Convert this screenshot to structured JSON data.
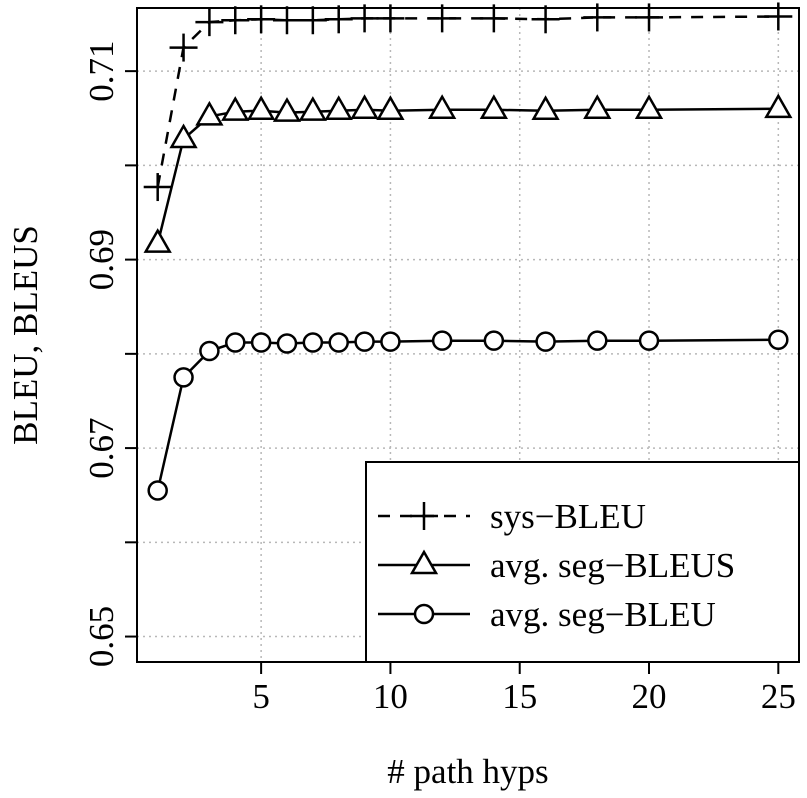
{
  "chart_data": {
    "type": "line",
    "xlabel": "# path hyps",
    "ylabel": "BLEU, BLEUS",
    "xlim": [
      0.2,
      25.8
    ],
    "ylim": [
      0.6473,
      0.7167
    ],
    "x_ticks": [
      "5",
      "10",
      "15",
      "20",
      "25"
    ],
    "y_ticks": [
      "0.65",
      "0.67",
      "0.69",
      "0.71"
    ],
    "grid": true,
    "legend_position": "bottom-right",
    "x": [
      1,
      2,
      3,
      4,
      5,
      6,
      7,
      8,
      9,
      10,
      12,
      14,
      16,
      18,
      20,
      25
    ],
    "series": [
      {
        "name": "sys−BLEU",
        "marker": "plus",
        "line": "dashed",
        "values": [
          0.6977,
          0.7125,
          0.7152,
          0.7154,
          0.7155,
          0.7154,
          0.7154,
          0.7155,
          0.7156,
          0.7156,
          0.7156,
          0.7156,
          0.7155,
          0.7157,
          0.7157,
          0.7158
        ]
      },
      {
        "name": "avg. seg−BLEUS",
        "marker": "triangle",
        "line": "solid",
        "values": [
          0.6917,
          0.7028,
          0.7052,
          0.7057,
          0.7058,
          0.7056,
          0.7057,
          0.7058,
          0.7059,
          0.7058,
          0.7059,
          0.7059,
          0.7058,
          0.7059,
          0.7059,
          0.706
        ]
      },
      {
        "name": "avg. seg−BLEU",
        "marker": "circle",
        "line": "solid",
        "values": [
          0.6655,
          0.6775,
          0.6803,
          0.6812,
          0.6812,
          0.6811,
          0.6812,
          0.6812,
          0.6813,
          0.6813,
          0.6814,
          0.6814,
          0.6813,
          0.6814,
          0.6814,
          0.6815
        ]
      }
    ]
  }
}
